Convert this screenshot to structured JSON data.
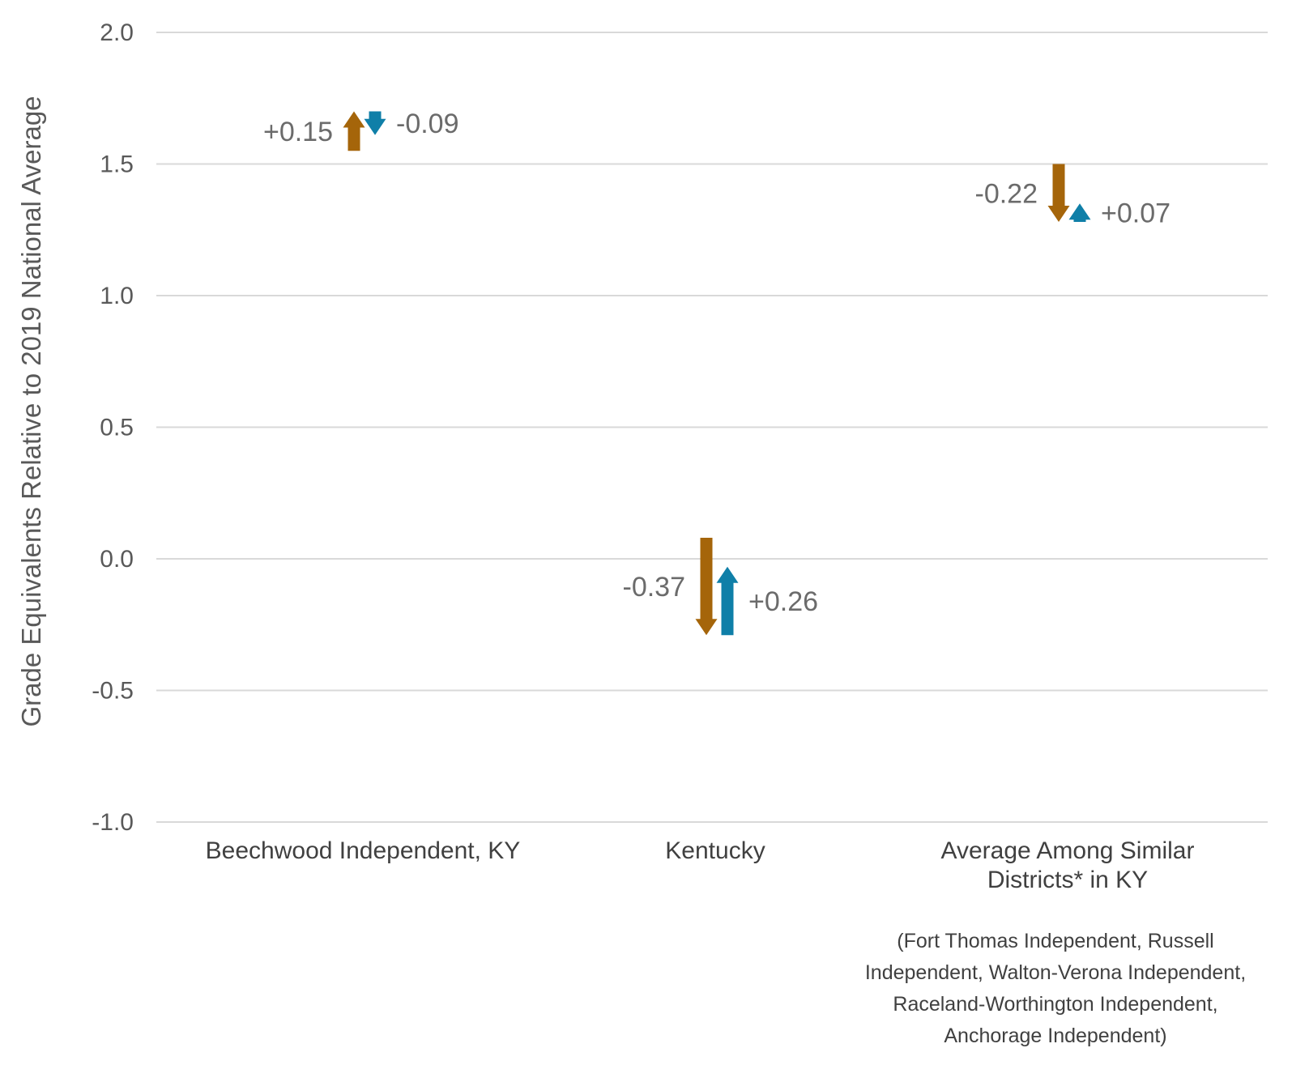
{
  "colors": {
    "series_1": "#a5650a",
    "series_2": "#0f7fa8",
    "grid": "#d9d9d9",
    "text": "#595959"
  },
  "chart_data": {
    "type": "arrow",
    "ylabel": "Grade Equivalents Relative to 2019 National Average",
    "ylim": [
      -1.0,
      2.0
    ],
    "yticks": [
      2.0,
      1.5,
      1.0,
      0.5,
      0.0,
      -0.5,
      -1.0
    ],
    "ytick_labels": [
      "2.0",
      "1.5",
      "1.0",
      "0.5",
      "0.0",
      "-0.5",
      "-1.0"
    ],
    "grid": true,
    "categories": [
      {
        "lines": [
          "Beechwood Independent, KY"
        ],
        "note": []
      },
      {
        "lines": [
          "Kentucky"
        ],
        "note": []
      },
      {
        "lines": [
          "Average Among Similar",
          "Districts* in KY"
        ],
        "note": [
          "(Fort Thomas Independent, Russell",
          "Independent, Walton-Verona Independent,",
          "Raceland-Worthington Independent,",
          "Anchorage Independent)"
        ]
      }
    ],
    "series": [
      {
        "color": "#a5650a",
        "start": [
          1.55,
          0.08,
          1.5
        ],
        "end": [
          1.7,
          -0.29,
          1.28
        ],
        "labels": [
          "+0.15",
          "-0.37",
          "-0.22"
        ]
      },
      {
        "color": "#0f7fa8",
        "start": [
          1.7,
          -0.29,
          1.28
        ],
        "end": [
          1.61,
          -0.03,
          1.35
        ],
        "labels": [
          "-0.09",
          "+0.26",
          "+0.07"
        ]
      }
    ]
  }
}
